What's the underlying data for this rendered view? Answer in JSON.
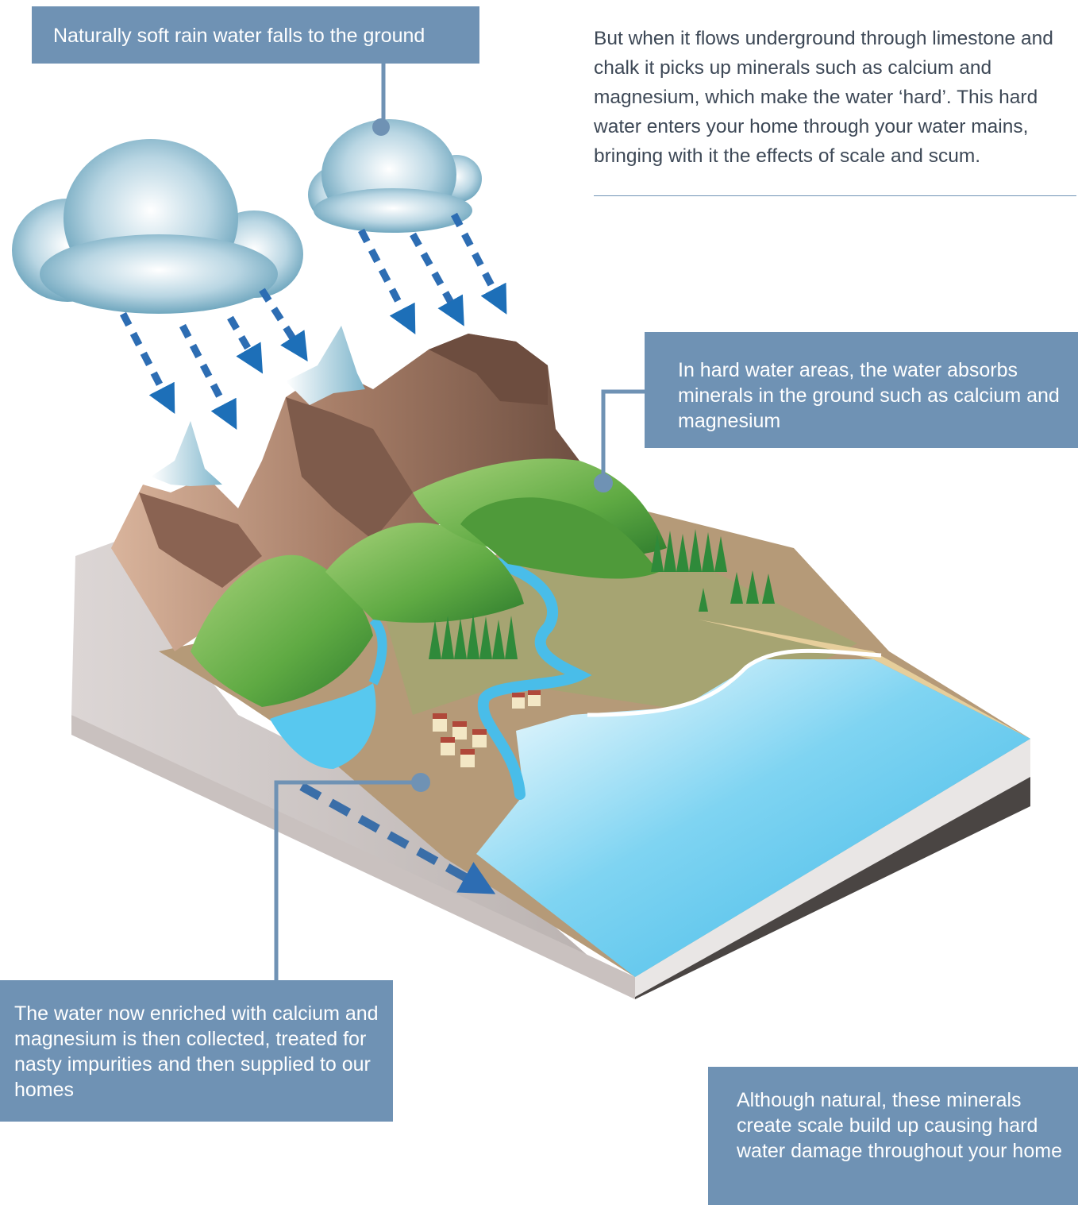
{
  "callouts": {
    "soft_rain": "Naturally soft rain water falls to the ground",
    "absorbs_minerals": "In hard water areas, the water absorbs minerals in the ground such as calcium and magnesium",
    "collected": "The water now enriched with calcium and magnesium is then collected, treated for nasty impurities and then supplied to our homes",
    "scale_damage": "Although natural, these minerals create scale build up causing hard water damage throughout your home"
  },
  "intro_text": "But when it flows underground through limestone and chalk it picks up minerals such as calcium and magnesium, which make the water ‘hard’. This hard water enters your home through your water mains, bringing with it the effects of scale and scum.",
  "colors": {
    "callout_bg": "#6f92b4",
    "water": "#4fc3ec",
    "hill_green": "#5faa43",
    "rock_brown": "#9c7763"
  }
}
